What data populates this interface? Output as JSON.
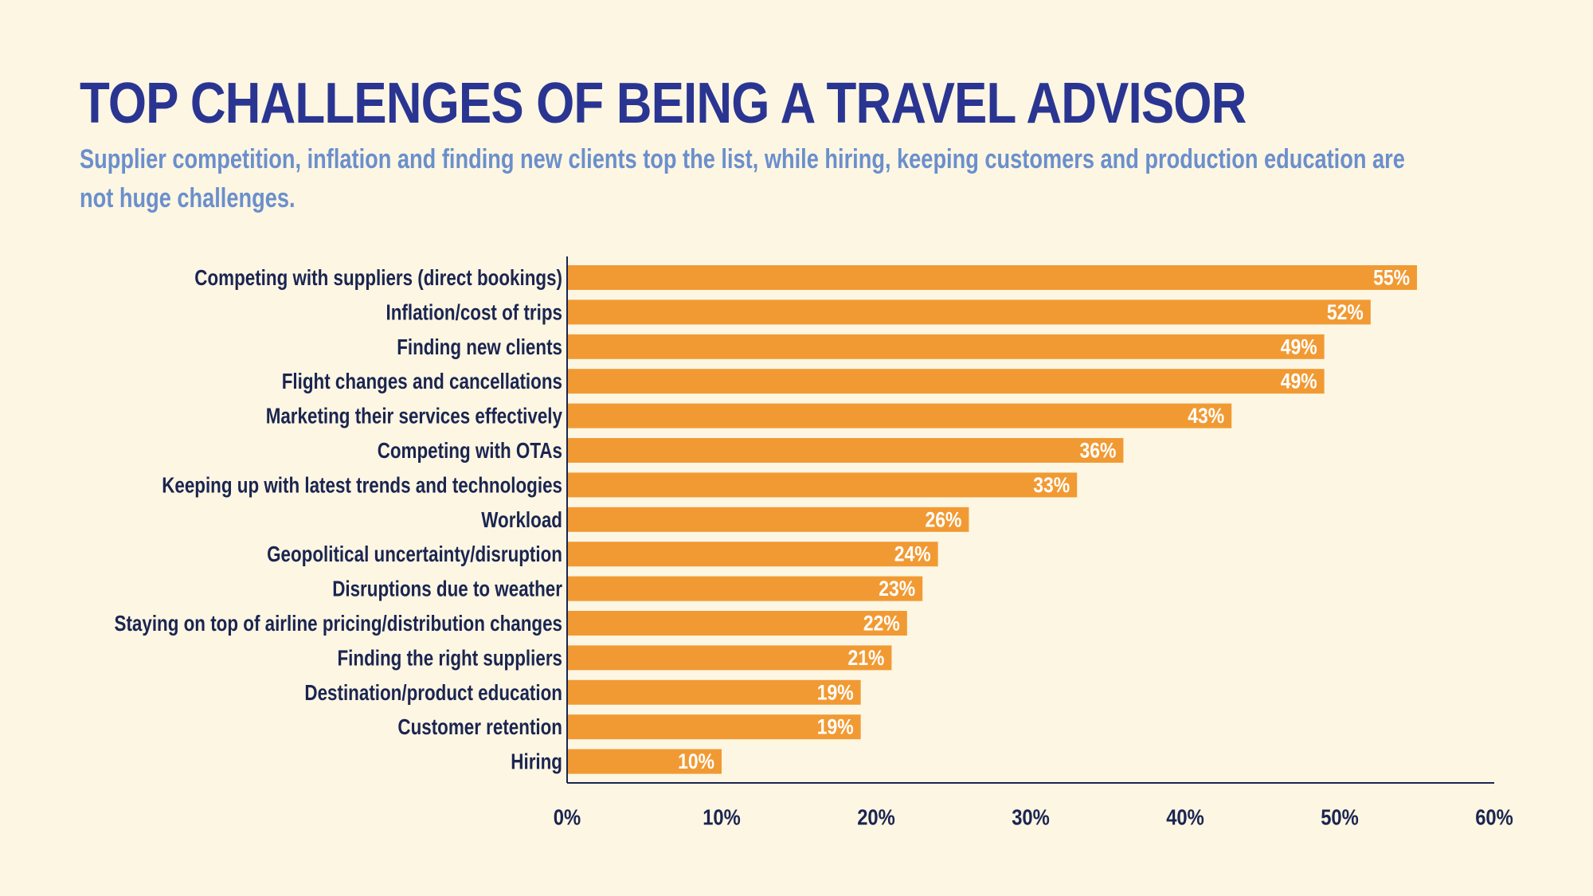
{
  "header": {
    "title": "TOP CHALLENGES OF BEING A TRAVEL ADVISOR",
    "subtitle": "Supplier competition, inflation and finding new clients top the list, while hiring, keeping customers and production education are not huge challenges."
  },
  "colors": {
    "background": "#fcf6e3",
    "bar": "#f19a33",
    "title": "#2a3592",
    "subtitle": "#6b8fcc",
    "text": "#1b2550",
    "value_label": "#ffffff"
  },
  "chart_data": {
    "type": "bar",
    "orientation": "horizontal",
    "title": "TOP CHALLENGES OF BEING A TRAVEL ADVISOR",
    "xlabel": "",
    "ylabel": "",
    "categories": [
      "Competing with suppliers (direct bookings)",
      "Inflation/cost of trips",
      "Finding new clients",
      "Flight changes and cancellations",
      "Marketing their services effectively",
      "Competing with OTAs",
      "Keeping up with latest trends and technologies",
      "Workload",
      "Geopolitical uncertainty/disruption",
      "Disruptions due to weather",
      "Staying on top of airline pricing/distribution changes",
      "Finding the right suppliers",
      "Destination/product education",
      "Customer retention",
      "Hiring"
    ],
    "values": [
      55,
      52,
      49,
      49,
      43,
      36,
      33,
      26,
      24,
      23,
      22,
      21,
      19,
      19,
      10
    ],
    "value_labels": [
      "55%",
      "52%",
      "49%",
      "49%",
      "43%",
      "36%",
      "33%",
      "26%",
      "24%",
      "23%",
      "22%",
      "21%",
      "19%",
      "19%",
      "10%"
    ],
    "xlim": [
      0,
      60
    ],
    "x_ticks": [
      0,
      10,
      20,
      30,
      40,
      50,
      60
    ],
    "x_tick_labels": [
      "0%",
      "10%",
      "20%",
      "30%",
      "40%",
      "50%",
      "60%"
    ],
    "grid": false,
    "legend": "none"
  }
}
